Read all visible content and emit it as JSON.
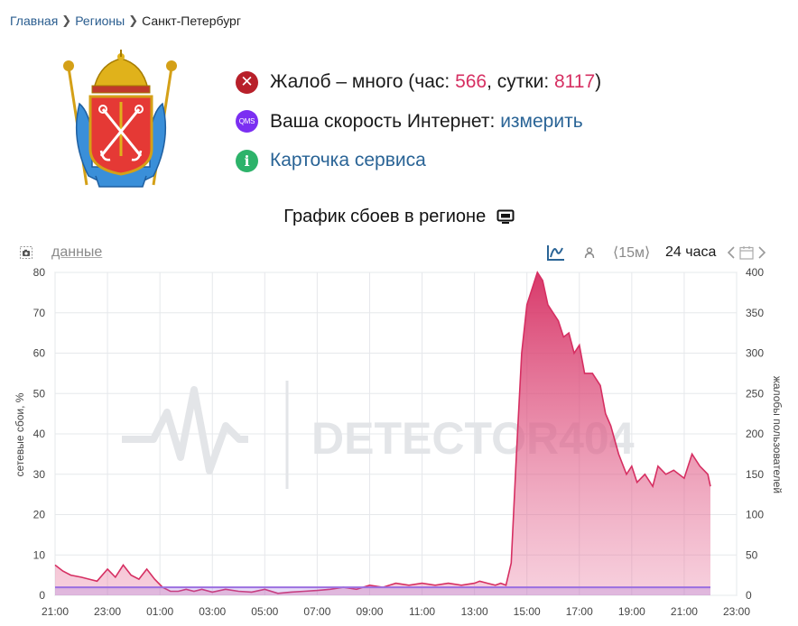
{
  "breadcrumb": {
    "home": "Главная",
    "regions": "Регионы",
    "current": "Санкт-Петербург"
  },
  "status": {
    "complaints_prefix": "Жалоб – много (час: ",
    "hour_value": "566",
    "day_sep": ", сутки: ",
    "day_value": "8117",
    "complaints_suffix": ")",
    "speed_label": "Ваша скорость Интернет: ",
    "speed_link": "измерить",
    "card_link": "Карточка сервиса",
    "qms_icon_text": "QMS",
    "info_icon_text": "i"
  },
  "chart_title": "График сбоев в регионе",
  "toolbar": {
    "data_link": "данные",
    "interval": "⟨15м⟩",
    "period": "24 часа"
  },
  "watermark": "DETECTOR404",
  "colors": {
    "accent_pink": "#d62f62",
    "link_blue": "#2a6496",
    "baseline_purple": "#9b6fe0",
    "error_red": "#b8202a",
    "info_green": "#2db36a",
    "qms_purple": "#7b2ff2"
  },
  "icons": [
    "camera-icon",
    "chart-mode-icon",
    "user-icon",
    "arrow-left-icon",
    "arrow-right-icon",
    "calendar-icon",
    "monitor-icon",
    "close-icon",
    "info-icon"
  ],
  "chart_data": {
    "type": "area",
    "ylabel": "сетевые сбои, %",
    "y2label": "жалобы пользователей",
    "ylim": [
      0,
      80
    ],
    "y2lim": [
      0,
      400
    ],
    "yticks": [
      0,
      10,
      20,
      30,
      40,
      50,
      60,
      70,
      80
    ],
    "y2ticks": [
      0,
      50,
      100,
      150,
      200,
      250,
      300,
      350,
      400
    ],
    "xlim": [
      0,
      26
    ],
    "xticks": [
      "21:00",
      "23:00",
      "01:00",
      "03:00",
      "05:00",
      "07:00",
      "09:00",
      "11:00",
      "13:00",
      "15:00",
      "17:00",
      "19:00",
      "21:00",
      "23:00"
    ],
    "grid": true,
    "x_unit": "hours since 21:00",
    "series": [
      {
        "color": "#d62f62",
        "x": [
          0,
          0.3,
          0.6,
          1,
          1.3,
          1.6,
          2,
          2.3,
          2.6,
          2.9,
          3.2,
          3.5,
          3.8,
          4.1,
          4.4,
          4.7,
          5,
          5.3,
          5.6,
          6,
          6.5,
          7,
          7.5,
          8,
          8.5,
          9,
          9.5,
          10,
          10.5,
          11,
          11.5,
          12,
          12.5,
          13,
          13.5,
          14,
          14.5,
          15,
          15.5,
          16,
          16.2,
          16.5,
          16.8,
          17,
          17.2,
          17.4,
          17.6,
          17.8,
          18,
          18.2,
          18.4,
          18.6,
          18.8,
          19,
          19.2,
          19.4,
          19.6,
          19.8,
          20,
          20.2,
          20.5,
          20.8,
          21,
          21.2,
          21.5,
          21.8,
          22,
          22.2,
          22.5,
          22.8,
          23,
          23.3,
          23.6,
          24,
          24.3,
          24.6,
          24.9,
          25
        ],
        "values": [
          7.5,
          6,
          5,
          4.5,
          4,
          3.5,
          6.5,
          4.5,
          7.5,
          5,
          4,
          6.5,
          4,
          2,
          1,
          1,
          1.5,
          1,
          1.5,
          0.8,
          1.5,
          1,
          0.8,
          1.5,
          0.5,
          0.8,
          1,
          1.2,
          1.5,
          2,
          1.5,
          2.5,
          2,
          3,
          2.5,
          3,
          2.5,
          3,
          2.5,
          3,
          3.5,
          3,
          2.5,
          3,
          2.5,
          8,
          35,
          60,
          72,
          76,
          80,
          78,
          72,
          70,
          68,
          64,
          65,
          60,
          62,
          55,
          55,
          52,
          45,
          42,
          35,
          30,
          32,
          28,
          30,
          27,
          32,
          30,
          31,
          29,
          35,
          32,
          30,
          27
        ]
      },
      {
        "color": "#9b6fe0",
        "constant": 2
      }
    ]
  }
}
